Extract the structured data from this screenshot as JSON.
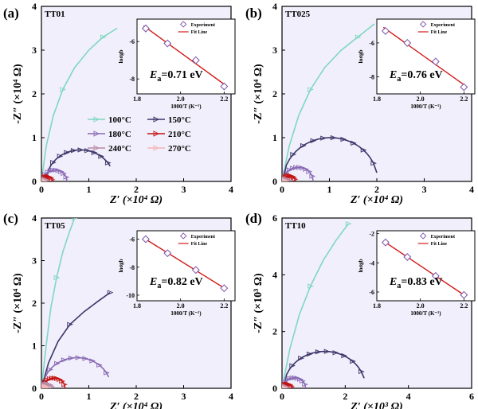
{
  "colors": {
    "plot_bg": "#f1effb",
    "s100": "#7fd7c1",
    "s150": "#3b3568",
    "s180": "#8a6bb5",
    "s210": "#c41212",
    "s240": "#b98aa6",
    "s270": "#f2b6b6",
    "fit": "#d11a1a",
    "exp": "#7a4fa8"
  },
  "legend": [
    "100°C",
    "150°C",
    "180°C",
    "210°C",
    "240°C",
    "270°C"
  ],
  "inset_legend": {
    "exp": "Experiment",
    "fit": "Fit Line"
  },
  "chart_data": [
    {
      "panel": "(a)",
      "sample": "TT01",
      "type": "line",
      "xlabel": "Z′ (×10⁴ Ω)",
      "ylabel": "-Z″ (×10⁴ Ω)",
      "xlim": [
        0,
        4
      ],
      "ylim": [
        0,
        4
      ],
      "xticks": [
        0,
        1,
        2,
        3,
        4
      ],
      "yticks": [
        0,
        1,
        2,
        3,
        4
      ],
      "series": [
        {
          "name": "100°C",
          "x": [
            0,
            0.1,
            0.25,
            0.45,
            0.7,
            1.0,
            1.3,
            1.6
          ],
          "y": [
            0,
            0.8,
            1.5,
            2.1,
            2.6,
            3.0,
            3.3,
            3.5
          ]
        },
        {
          "name": "150°C",
          "arc_center": 0.82,
          "arc_radius": 0.72,
          "x_end": 1.45
        },
        {
          "name": "180°C",
          "arc_center": 0.28,
          "arc_radius": 0.26
        },
        {
          "name": "210°C",
          "arc_center": 0.12,
          "arc_radius": 0.11
        },
        {
          "name": "240°C",
          "arc_center": 0.06,
          "arc_radius": 0.05
        },
        {
          "name": "270°C",
          "arc_center": 0.03,
          "arc_radius": 0.025
        }
      ],
      "inset": {
        "type": "scatter",
        "xlabel": "1000/T (K⁻¹)",
        "ylabel": "lnσgb",
        "xlim": [
          1.8,
          2.25
        ],
        "ylim": [
          -8.8,
          -4.8
        ],
        "xticks": [
          1.8,
          2.0,
          2.2
        ],
        "yticks": [
          -8,
          -6
        ],
        "x": [
          1.84,
          1.94,
          2.07,
          2.2
        ],
        "y": [
          -5.3,
          -6.1,
          -7.0,
          -8.4
        ],
        "ea": "E",
        "ea_sub": "a",
        "ea_val": "=0.71 eV"
      }
    },
    {
      "panel": "(b)",
      "sample": "TT025",
      "type": "line",
      "xlabel": "Z′ (×10⁴ Ω)",
      "ylabel": "-Z″ (×10⁴ Ω)",
      "xlim": [
        0,
        4
      ],
      "ylim": [
        0,
        4
      ],
      "xticks": [
        0,
        1,
        2,
        3,
        4
      ],
      "yticks": [
        0,
        1,
        2,
        3,
        4
      ],
      "series": [
        {
          "name": "100°C",
          "x": [
            0,
            0.15,
            0.35,
            0.6,
            0.9,
            1.25,
            1.6,
            1.95
          ],
          "y": [
            0,
            0.8,
            1.5,
            2.1,
            2.6,
            3.0,
            3.3,
            3.6
          ]
        },
        {
          "name": "150°C",
          "arc_center": 1.02,
          "arc_radius": 1.0,
          "x_end": 2.0
        },
        {
          "name": "180°C",
          "arc_center": 0.34,
          "arc_radius": 0.32
        },
        {
          "name": "210°C",
          "arc_center": 0.15,
          "arc_radius": 0.13
        },
        {
          "name": "240°C",
          "arc_center": 0.07,
          "arc_radius": 0.06
        },
        {
          "name": "270°C",
          "arc_center": 0.035,
          "arc_radius": 0.03
        }
      ],
      "inset": {
        "type": "scatter",
        "xlabel": "1000/T (K⁻¹)",
        "ylabel": "lnσgb",
        "xlim": [
          1.8,
          2.25
        ],
        "ylim": [
          -9.0,
          -4.6
        ],
        "xticks": [
          1.8,
          2.0,
          2.2
        ],
        "yticks": [
          -8,
          -6
        ],
        "x": [
          1.84,
          1.94,
          2.07,
          2.2
        ],
        "y": [
          -5.3,
          -6.0,
          -7.1,
          -8.6
        ],
        "ea": "E",
        "ea_sub": "a",
        "ea_val": "=0.76 eV"
      }
    },
    {
      "panel": "(c)",
      "sample": "TT05",
      "type": "line",
      "xlabel": "Z′ (×10⁴ Ω)",
      "ylabel": "-Z″ (×10⁴ Ω)",
      "xlim": [
        0,
        4
      ],
      "ylim": [
        0,
        4
      ],
      "xticks": [
        0,
        1,
        2,
        3,
        4
      ],
      "yticks": [
        0,
        1,
        2,
        3,
        4
      ],
      "series": [
        {
          "name": "100°C",
          "x": [
            0,
            0.1,
            0.2,
            0.32,
            0.45,
            0.6,
            0.7
          ],
          "y": [
            0,
            1.0,
            1.9,
            2.6,
            3.2,
            3.7,
            4.0
          ]
        },
        {
          "name": "150°C",
          "x": [
            0,
            0.15,
            0.35,
            0.6,
            0.9,
            1.2,
            1.45
          ],
          "y": [
            0,
            0.6,
            1.1,
            1.5,
            1.8,
            2.05,
            2.25
          ]
        },
        {
          "name": "180°C",
          "arc_center": 0.75,
          "arc_radius": 0.72,
          "x_end": 1.42
        },
        {
          "name": "210°C",
          "arc_center": 0.26,
          "arc_radius": 0.24
        },
        {
          "name": "240°C",
          "arc_center": 0.12,
          "arc_radius": 0.1
        },
        {
          "name": "270°C",
          "arc_center": 0.06,
          "arc_radius": 0.05
        }
      ],
      "inset": {
        "type": "scatter",
        "xlabel": "1000/T (K⁻¹)",
        "ylabel": "lnσgb",
        "xlim": [
          1.8,
          2.25
        ],
        "ylim": [
          -10.4,
          -5.4
        ],
        "xticks": [
          1.8,
          2.0,
          2.2
        ],
        "yticks": [
          -10,
          -8,
          -6
        ],
        "x": [
          1.84,
          1.94,
          2.07,
          2.2
        ],
        "y": [
          -6.0,
          -7.0,
          -8.2,
          -9.5
        ],
        "ea": "E",
        "ea_sub": "a",
        "ea_val": "=0.82 eV"
      }
    },
    {
      "panel": "(d)",
      "sample": "TT10",
      "type": "line",
      "xlabel": "Z′ (×10³ Ω)",
      "ylabel": "-Z″ (×10³ Ω)",
      "xlim": [
        0,
        6
      ],
      "ylim": [
        0,
        6
      ],
      "xticks": [
        0,
        2,
        4,
        6
      ],
      "yticks": [
        0,
        2,
        4,
        6
      ],
      "series": [
        {
          "name": "100°C",
          "x": [
            0,
            0.25,
            0.55,
            0.9,
            1.3,
            1.7,
            2.1
          ],
          "y": [
            0,
            1.4,
            2.6,
            3.6,
            4.5,
            5.2,
            5.8
          ]
        },
        {
          "name": "150°C",
          "arc_center": 1.35,
          "arc_radius": 1.3,
          "x_end": 2.6
        },
        {
          "name": "180°C",
          "arc_center": 0.38,
          "arc_radius": 0.37
        },
        {
          "name": "210°C",
          "arc_center": 0.16,
          "arc_radius": 0.15
        },
        {
          "name": "240°C",
          "arc_center": 0.08,
          "arc_radius": 0.07
        },
        {
          "name": "270°C",
          "arc_center": 0.04,
          "arc_radius": 0.035
        }
      ],
      "inset": {
        "type": "scatter",
        "xlabel": "1000/T (K⁻¹)",
        "ylabel": "lnσgb",
        "xlim": [
          1.8,
          2.25
        ],
        "ylim": [
          -6.6,
          -1.8
        ],
        "xticks": [
          1.8,
          2.0,
          2.2
        ],
        "yticks": [
          -6,
          -4,
          -2
        ],
        "x": [
          1.84,
          1.94,
          2.07,
          2.2
        ],
        "y": [
          -2.6,
          -3.6,
          -4.9,
          -6.2
        ],
        "ea": "E",
        "ea_sub": "a",
        "ea_val": "=0.83 eV"
      }
    }
  ]
}
